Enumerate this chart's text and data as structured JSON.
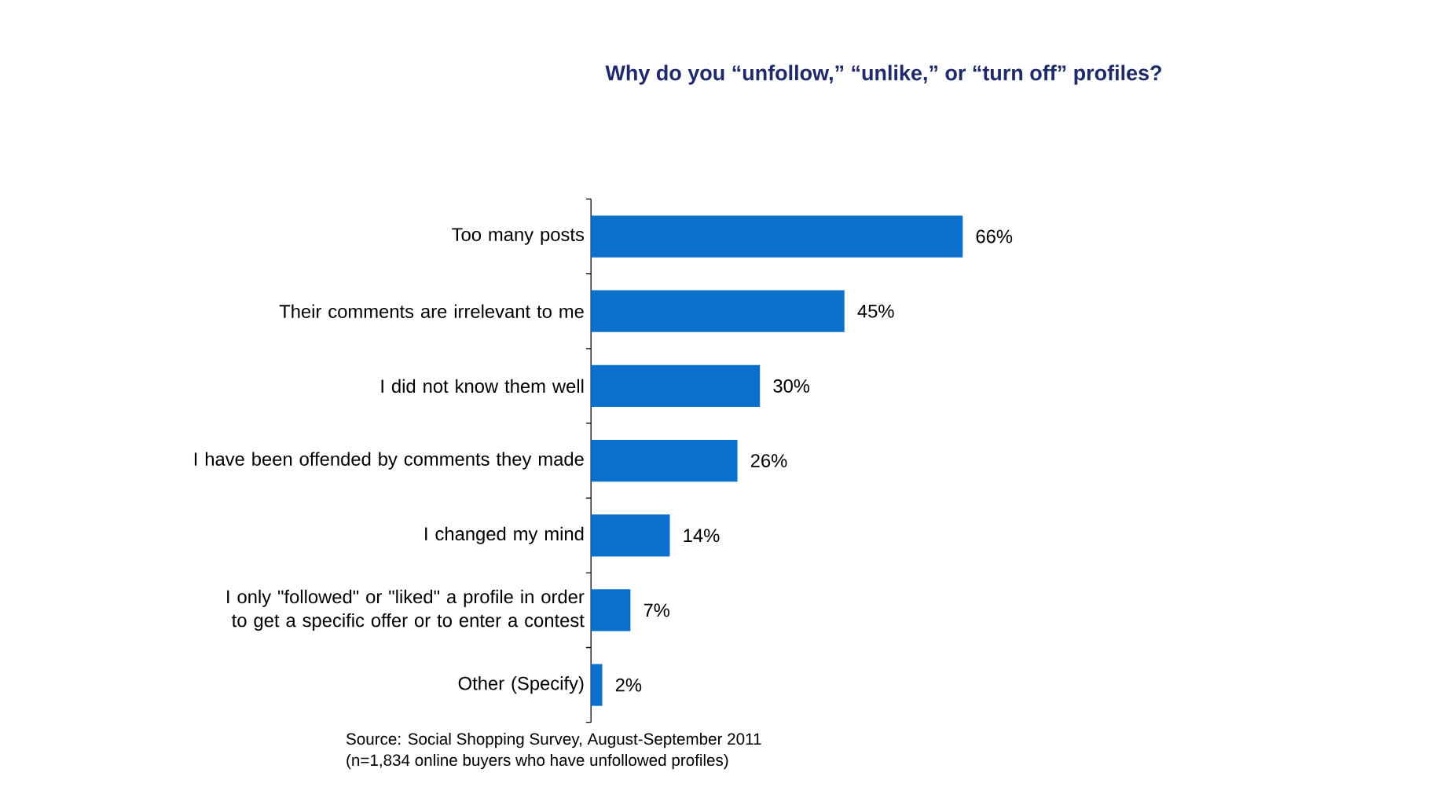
{
  "chart_data": {
    "type": "bar",
    "orientation": "horizontal",
    "title": "Why do you “unfollow,” “unlike,” or “turn off” profiles?",
    "categories": [
      "Too many posts",
      "Their comments are irrelevant to me",
      "I did not know them well",
      "I have been offended by comments they made",
      "I changed my mind",
      "I only \"followed\" or \"liked\" a profile in order to get a specific offer or to enter a contest",
      "Other (Specify)"
    ],
    "values": [
      66,
      45,
      30,
      26,
      14,
      7,
      2
    ],
    "value_labels": [
      "66%",
      "45%",
      "30%",
      "26%",
      "14%",
      "7%",
      "2%"
    ],
    "color": "#0a70cc",
    "tick_labels": "y",
    "annotations": [
      "Source: Social Shopping Survey, August-September 2011",
      "(n=1,834 online buyers who have unfollowed profiles)"
    ]
  }
}
